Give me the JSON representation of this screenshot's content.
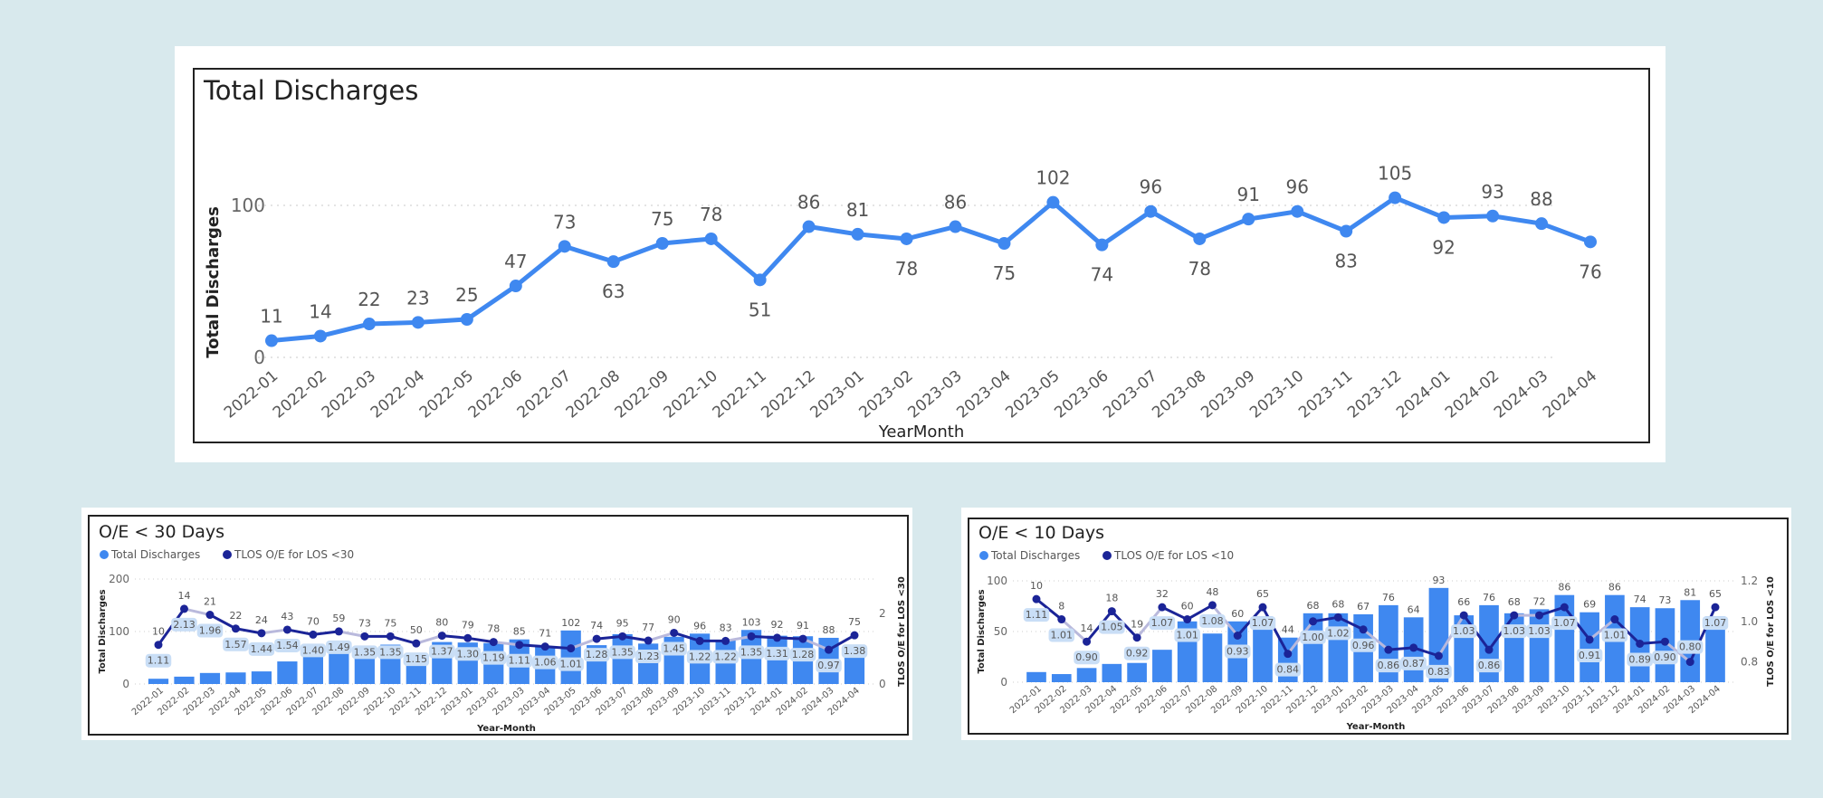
{
  "colors": {
    "background": "#d8e9ed",
    "bar": "#3f88f0",
    "line_dark": "#1b2497",
    "line_light": "#b9b9dc",
    "main_line": "#3f88f0",
    "label_bg": "#c9def6"
  },
  "chart_data": [
    {
      "type": "line",
      "title": "Total Discharges",
      "xlabel": "YearMonth",
      "ylabel": "Total Discharges",
      "ylim": [
        0,
        100
      ],
      "yticks": [
        0,
        100
      ],
      "grid": true,
      "categories": [
        "2022-01",
        "2022-02",
        "2022-03",
        "2022-04",
        "2022-05",
        "2022-06",
        "2022-07",
        "2022-08",
        "2022-09",
        "2022-10",
        "2022-11",
        "2022-12",
        "2023-01",
        "2023-02",
        "2023-03",
        "2023-04",
        "2023-05",
        "2023-06",
        "2023-07",
        "2023-08",
        "2023-09",
        "2023-10",
        "2023-11",
        "2023-12",
        "2024-01",
        "2024-02",
        "2024-03",
        "2024-04"
      ],
      "values": [
        11,
        14,
        22,
        23,
        25,
        47,
        73,
        63,
        75,
        78,
        51,
        86,
        81,
        78,
        86,
        75,
        102,
        74,
        96,
        78,
        91,
        96,
        83,
        105,
        92,
        93,
        88,
        76
      ]
    },
    {
      "type": "bar+line",
      "title": "O/E < 30 Days",
      "xlabel": "Year-Month",
      "ylabel": "Total Discharges",
      "y2label": "TLOS O/E for LOS <30",
      "ylim": [
        0,
        200
      ],
      "yticks": [
        0,
        100,
        200
      ],
      "y2lim": [
        0,
        2.6
      ],
      "y2ticks": [
        0,
        2
      ],
      "legend_position": "top-left",
      "categories": [
        "2022-01",
        "2022-02",
        "2022-03",
        "2022-04",
        "2022-05",
        "2022-06",
        "2022-07",
        "2022-08",
        "2022-09",
        "2022-10",
        "2022-11",
        "2022-12",
        "2023-01",
        "2023-02",
        "2023-03",
        "2023-04",
        "2023-05",
        "2023-06",
        "2023-07",
        "2023-08",
        "2023-09",
        "2023-10",
        "2023-11",
        "2023-12",
        "2024-01",
        "2024-02",
        "2024-03",
        "2024-04"
      ],
      "series": [
        {
          "name": "Total Discharges",
          "type": "bar",
          "values": [
            10,
            14,
            21,
            22,
            24,
            43,
            70,
            59,
            73,
            75,
            50,
            80,
            79,
            78,
            85,
            71,
            102,
            74,
            95,
            77,
            90,
            96,
            83,
            103,
            92,
            91,
            88,
            75
          ]
        },
        {
          "name": "TLOS O/E for LOS <30",
          "type": "line",
          "values": [
            1.11,
            2.13,
            1.96,
            1.57,
            1.44,
            1.54,
            1.4,
            1.49,
            1.35,
            1.35,
            1.15,
            1.37,
            1.3,
            1.19,
            1.11,
            1.06,
            1.01,
            1.28,
            1.35,
            1.23,
            1.45,
            1.22,
            1.22,
            1.35,
            1.31,
            1.28,
            0.97,
            1.38
          ]
        }
      ]
    },
    {
      "type": "bar+line",
      "title": "O/E < 10 Days",
      "xlabel": "Year-Month",
      "ylabel": "Total Discharges",
      "y2label": "TLOS O/E for LOS <10",
      "ylim": [
        0,
        100
      ],
      "yticks": [
        0,
        50,
        100
      ],
      "y2lim": [
        0.7,
        1.2
      ],
      "y2ticks": [
        0.8,
        1.0,
        1.2
      ],
      "legend_position": "top-left",
      "categories": [
        "2022-01",
        "2022-02",
        "2022-03",
        "2022-04",
        "2022-05",
        "2022-06",
        "2022-07",
        "2022-08",
        "2022-09",
        "2022-10",
        "2022-11",
        "2022-12",
        "2023-01",
        "2023-02",
        "2023-03",
        "2023-04",
        "2023-05",
        "2023-06",
        "2023-07",
        "2023-08",
        "2023-09",
        "2023-10",
        "2023-11",
        "2023-12",
        "2024-01",
        "2024-02",
        "2024-03",
        "2024-04"
      ],
      "series": [
        {
          "name": "Total Discharges",
          "type": "bar",
          "values": [
            10,
            8,
            14,
            18,
            19,
            32,
            60,
            48,
            60,
            65,
            44,
            68,
            68,
            67,
            76,
            64,
            93,
            66,
            76,
            68,
            72,
            86,
            69,
            86,
            74,
            73,
            81,
            65
          ]
        },
        {
          "name": "TLOS O/E for LOS <10",
          "type": "line",
          "values": [
            1.11,
            1.01,
            0.9,
            1.05,
            0.92,
            1.07,
            1.01,
            1.08,
            0.93,
            1.07,
            0.84,
            1.0,
            1.02,
            0.96,
            0.86,
            0.87,
            0.83,
            1.03,
            0.86,
            1.03,
            1.03,
            1.07,
            0.91,
            1.01,
            0.89,
            0.9,
            0.8,
            1.07
          ]
        }
      ]
    }
  ]
}
